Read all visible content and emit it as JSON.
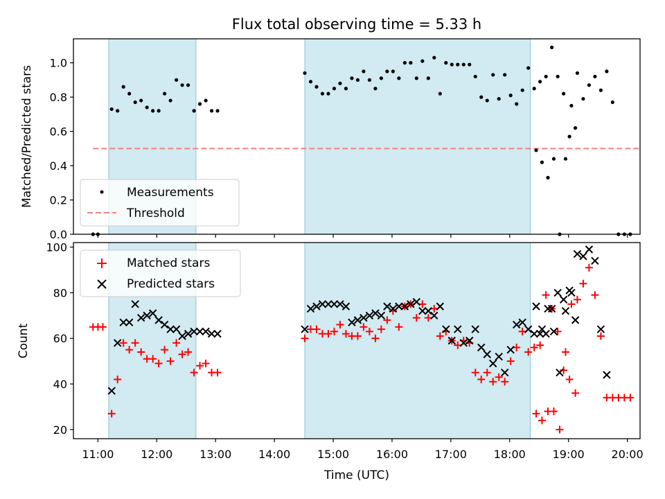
{
  "chart_data": [
    {
      "type": "scatter",
      "title": "Flux total observing time = 5.33 h",
      "ylabel": "Matched/Predicted stars",
      "xlabel": "",
      "xlim": [
        "10:35",
        "20:13"
      ],
      "ylim": [
        0,
        1.14
      ],
      "yticks": [
        "0.0",
        "0.2",
        "0.4",
        "0.6",
        "0.8",
        "1.0"
      ],
      "grid": false,
      "legend": "lower-left",
      "shaded_intervals": [
        [
          "11:11",
          "12:40"
        ],
        [
          "14:31",
          "18:21"
        ]
      ],
      "shade_color": "#add8e6",
      "series": [
        {
          "name": "Measurements",
          "marker": "dot",
          "color": "#000000",
          "points": [
            [
              "10:55",
              0.0
            ],
            [
              "11:00",
              0.0
            ],
            [
              "11:14",
              0.73
            ],
            [
              "11:20",
              0.72
            ],
            [
              "11:26",
              0.86
            ],
            [
              "11:32",
              0.82
            ],
            [
              "11:38",
              0.77
            ],
            [
              "11:44",
              0.78
            ],
            [
              "11:50",
              0.74
            ],
            [
              "11:56",
              0.72
            ],
            [
              "12:02",
              0.72
            ],
            [
              "12:08",
              0.82
            ],
            [
              "12:14",
              0.78
            ],
            [
              "12:20",
              0.9
            ],
            [
              "12:26",
              0.87
            ],
            [
              "12:32",
              0.87
            ],
            [
              "12:38",
              0.72
            ],
            [
              "12:44",
              0.76
            ],
            [
              "12:50",
              0.78
            ],
            [
              "12:56",
              0.72
            ],
            [
              "13:02",
              0.72
            ],
            [
              "14:31",
              0.94
            ],
            [
              "14:37",
              0.89
            ],
            [
              "14:43",
              0.86
            ],
            [
              "14:49",
              0.82
            ],
            [
              "14:55",
              0.82
            ],
            [
              "15:01",
              0.85
            ],
            [
              "15:07",
              0.88
            ],
            [
              "15:13",
              0.85
            ],
            [
              "15:19",
              0.91
            ],
            [
              "15:25",
              0.9
            ],
            [
              "15:31",
              0.95
            ],
            [
              "15:37",
              0.9
            ],
            [
              "15:43",
              0.85
            ],
            [
              "15:49",
              0.91
            ],
            [
              "15:55",
              0.95
            ],
            [
              "16:01",
              0.95
            ],
            [
              "16:07",
              0.91
            ],
            [
              "16:13",
              1.0
            ],
            [
              "16:19",
              1.0
            ],
            [
              "16:25",
              0.91
            ],
            [
              "16:31",
              1.01
            ],
            [
              "16:37",
              0.91
            ],
            [
              "16:43",
              1.03
            ],
            [
              "16:49",
              0.82
            ],
            [
              "16:55",
              1.0
            ],
            [
              "17:01",
              0.99
            ],
            [
              "17:07",
              0.99
            ],
            [
              "17:13",
              0.99
            ],
            [
              "17:19",
              0.99
            ],
            [
              "17:25",
              0.92
            ],
            [
              "17:31",
              0.8
            ],
            [
              "17:37",
              0.78
            ],
            [
              "17:43",
              0.93
            ],
            [
              "17:49",
              0.79
            ],
            [
              "17:55",
              0.93
            ],
            [
              "18:01",
              0.81
            ],
            [
              "18:07",
              0.76
            ],
            [
              "18:13",
              0.84
            ],
            [
              "18:19",
              0.97
            ],
            [
              "18:25",
              0.85
            ],
            [
              "18:31",
              0.89
            ],
            [
              "18:37",
              0.92
            ],
            [
              "18:43",
              1.09
            ],
            [
              "18:49",
              0.92
            ],
            [
              "18:55",
              0.82
            ],
            [
              "19:01",
              0.57
            ],
            [
              "19:07",
              0.62
            ],
            [
              "18:27",
              0.49
            ],
            [
              "18:33",
              0.42
            ],
            [
              "18:39",
              0.33
            ],
            [
              "18:45",
              0.44
            ],
            [
              "18:51",
              0.0
            ],
            [
              "18:57",
              0.44
            ],
            [
              "19:03",
              0.75
            ],
            [
              "19:09",
              0.94
            ],
            [
              "19:15",
              0.79
            ],
            [
              "19:21",
              0.87
            ],
            [
              "19:27",
              0.92
            ],
            [
              "19:33",
              0.84
            ],
            [
              "19:39",
              0.95
            ],
            [
              "19:45",
              0.77
            ],
            [
              "19:51",
              0.0
            ],
            [
              "19:57",
              0.0
            ],
            [
              "20:03",
              0.0
            ]
          ]
        },
        {
          "name": "Threshold",
          "line": "dashed",
          "color": "#f08080",
          "x": [
            "10:55",
            "20:13"
          ],
          "y": [
            0.5,
            0.5
          ]
        }
      ]
    },
    {
      "type": "scatter",
      "title": "",
      "ylabel": "Count",
      "xlabel": "Time (UTC)",
      "xlim": [
        "10:35",
        "20:13"
      ],
      "ylim": [
        16,
        102
      ],
      "xticks": [
        "11:00",
        "12:00",
        "13:00",
        "14:00",
        "15:00",
        "16:00",
        "17:00",
        "18:00",
        "19:00",
        "20:00"
      ],
      "yticks": [
        "20",
        "40",
        "60",
        "80",
        "100"
      ],
      "grid": false,
      "legend": "upper-left",
      "shaded_intervals": [
        [
          "11:11",
          "12:40"
        ],
        [
          "14:31",
          "18:21"
        ]
      ],
      "shade_color": "#add8e6",
      "series": [
        {
          "name": "Matched stars",
          "marker": "plus",
          "color": "#ff0000",
          "points": [
            [
              "10:55",
              65
            ],
            [
              "11:00",
              65
            ],
            [
              "11:05",
              65
            ],
            [
              "11:14",
              27
            ],
            [
              "11:20",
              42
            ],
            [
              "11:26",
              58
            ],
            [
              "11:32",
              55
            ],
            [
              "11:38",
              58
            ],
            [
              "11:44",
              54
            ],
            [
              "11:50",
              51
            ],
            [
              "11:56",
              51
            ],
            [
              "12:02",
              49
            ],
            [
              "12:08",
              55
            ],
            [
              "12:14",
              50
            ],
            [
              "12:20",
              58
            ],
            [
              "12:26",
              53
            ],
            [
              "12:32",
              54
            ],
            [
              "12:38",
              45
            ],
            [
              "12:44",
              48
            ],
            [
              "12:50",
              49
            ],
            [
              "12:56",
              45
            ],
            [
              "13:02",
              45
            ],
            [
              "14:31",
              60
            ],
            [
              "14:37",
              64
            ],
            [
              "14:43",
              64
            ],
            [
              "14:49",
              62
            ],
            [
              "14:55",
              62
            ],
            [
              "15:01",
              63
            ],
            [
              "15:07",
              66
            ],
            [
              "15:13",
              62
            ],
            [
              "15:19",
              61
            ],
            [
              "15:25",
              61
            ],
            [
              "15:31",
              65
            ],
            [
              "15:37",
              63
            ],
            [
              "15:43",
              60
            ],
            [
              "15:49",
              64
            ],
            [
              "15:55",
              68
            ],
            [
              "16:01",
              72
            ],
            [
              "16:07",
              65
            ],
            [
              "16:13",
              74
            ],
            [
              "16:19",
              75
            ],
            [
              "16:25",
              69
            ],
            [
              "16:31",
              75
            ],
            [
              "16:37",
              69
            ],
            [
              "16:43",
              73
            ],
            [
              "16:49",
              61
            ],
            [
              "16:55",
              63
            ],
            [
              "17:01",
              59
            ],
            [
              "17:07",
              57
            ],
            [
              "17:13",
              59
            ],
            [
              "17:19",
              58
            ],
            [
              "17:25",
              45
            ],
            [
              "17:31",
              42
            ],
            [
              "17:37",
              45
            ],
            [
              "17:43",
              41
            ],
            [
              "17:49",
              43
            ],
            [
              "17:55",
              41
            ],
            [
              "18:01",
              50
            ],
            [
              "18:07",
              56
            ],
            [
              "18:13",
              63
            ],
            [
              "18:19",
              54
            ],
            [
              "18:25",
              56
            ],
            [
              "18:31",
              57
            ],
            [
              "18:37",
              79
            ],
            [
              "18:43",
              73
            ],
            [
              "18:49",
              63
            ],
            [
              "18:55",
              46
            ],
            [
              "19:01",
              42
            ],
            [
              "19:07",
              36
            ],
            [
              "18:27",
              27
            ],
            [
              "18:33",
              24
            ],
            [
              "18:39",
              28
            ],
            [
              "18:45",
              28
            ],
            [
              "18:51",
              20
            ],
            [
              "18:57",
              54
            ],
            [
              "19:03",
              75
            ],
            [
              "19:09",
              77
            ],
            [
              "19:15",
              84
            ],
            [
              "19:21",
              91
            ],
            [
              "19:27",
              79
            ],
            [
              "19:33",
              61
            ],
            [
              "19:39",
              34
            ],
            [
              "19:45",
              34
            ],
            [
              "19:51",
              34
            ],
            [
              "19:57",
              34
            ],
            [
              "20:03",
              34
            ]
          ]
        },
        {
          "name": "Predicted stars",
          "marker": "x",
          "color": "#000000",
          "points": [
            [
              "11:14",
              37
            ],
            [
              "11:20",
              58
            ],
            [
              "11:26",
              67
            ],
            [
              "11:32",
              67
            ],
            [
              "11:38",
              75
            ],
            [
              "11:44",
              69
            ],
            [
              "11:50",
              70
            ],
            [
              "11:56",
              71
            ],
            [
              "12:02",
              68
            ],
            [
              "12:08",
              66
            ],
            [
              "12:14",
              64
            ],
            [
              "12:20",
              64
            ],
            [
              "12:26",
              61
            ],
            [
              "12:32",
              62
            ],
            [
              "12:38",
              63
            ],
            [
              "12:44",
              63
            ],
            [
              "12:50",
              63
            ],
            [
              "12:56",
              62
            ],
            [
              "13:02",
              62
            ],
            [
              "14:31",
              64
            ],
            [
              "14:37",
              73
            ],
            [
              "14:43",
              74
            ],
            [
              "14:49",
              75
            ],
            [
              "14:55",
              75
            ],
            [
              "15:01",
              75
            ],
            [
              "15:07",
              75
            ],
            [
              "15:13",
              74
            ],
            [
              "15:19",
              67
            ],
            [
              "15:25",
              68
            ],
            [
              "15:31",
              69
            ],
            [
              "15:37",
              70
            ],
            [
              "15:43",
              71
            ],
            [
              "15:49",
              70
            ],
            [
              "15:55",
              74
            ],
            [
              "16:01",
              73
            ],
            [
              "16:07",
              74
            ],
            [
              "16:13",
              74
            ],
            [
              "16:19",
              75
            ],
            [
              "16:25",
              76
            ],
            [
              "16:31",
              72
            ],
            [
              "16:37",
              72
            ],
            [
              "16:43",
              70
            ],
            [
              "16:49",
              74
            ],
            [
              "16:55",
              64
            ],
            [
              "17:01",
              59
            ],
            [
              "17:07",
              64
            ],
            [
              "17:13",
              58
            ],
            [
              "17:19",
              59
            ],
            [
              "17:25",
              64
            ],
            [
              "17:31",
              56
            ],
            [
              "17:37",
              53
            ],
            [
              "17:43",
              49
            ],
            [
              "17:49",
              52
            ],
            [
              "17:55",
              45
            ],
            [
              "18:01",
              55
            ],
            [
              "18:07",
              66
            ],
            [
              "18:13",
              67
            ],
            [
              "18:19",
              64
            ],
            [
              "18:25",
              62
            ],
            [
              "18:31",
              62
            ],
            [
              "18:37",
              62
            ],
            [
              "18:43",
              73
            ],
            [
              "18:49",
              80
            ],
            [
              "18:55",
              77
            ],
            [
              "19:01",
              81
            ],
            [
              "19:07",
              68
            ],
            [
              "18:27",
              74
            ],
            [
              "18:33",
              64
            ],
            [
              "18:39",
              73
            ],
            [
              "18:45",
              63
            ],
            [
              "18:51",
              45
            ],
            [
              "18:57",
              72
            ],
            [
              "19:03",
              80
            ],
            [
              "19:09",
              97
            ],
            [
              "19:15",
              96
            ],
            [
              "19:21",
              99
            ],
            [
              "19:27",
              94
            ],
            [
              "19:33",
              64
            ],
            [
              "19:39",
              44
            ]
          ]
        }
      ]
    }
  ]
}
